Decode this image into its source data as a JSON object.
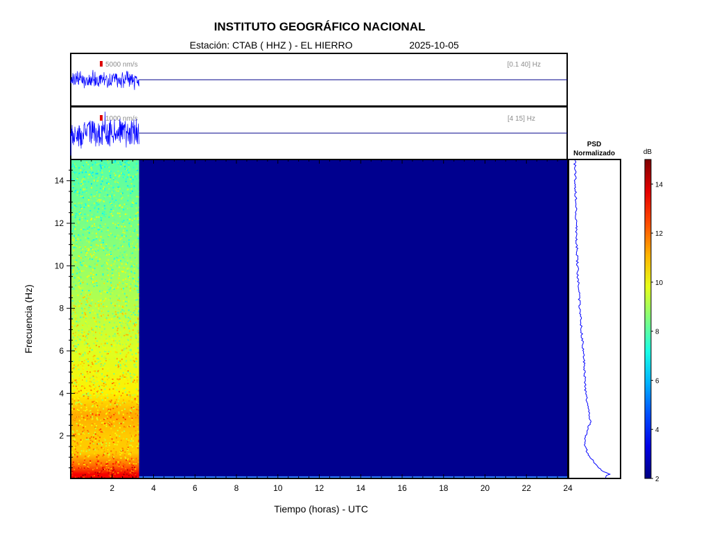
{
  "header": {
    "title": "INSTITUTO GEOGRÁFICO NACIONAL",
    "station": "Estación:  CTAB ( HHZ ) - EL HIERRO",
    "date": "2025-10-05"
  },
  "colors": {
    "trace": "#0000ff",
    "baseline": "#00008b",
    "scale_bar": "#dd0000",
    "empty_spectrogram": "#00008f"
  },
  "chart_data": [
    {
      "type": "line",
      "name": "waveform-broadband",
      "scale_label": "5000 nm/s",
      "band_label": "[0.1 40] Hz",
      "x_range": [
        0,
        24
      ],
      "data_end_hour": 3.3,
      "amplitude_rel": 0.35
    },
    {
      "type": "line",
      "name": "waveform-highpass",
      "scale_label": "1000 nm/s",
      "band_label": "[4 15] Hz",
      "x_range": [
        0,
        24
      ],
      "data_end_hour": 3.3,
      "amplitude_rel": 0.6
    },
    {
      "type": "heatmap",
      "name": "spectrogram",
      "xlabel": "Tiempo (horas) - UTC",
      "ylabel": "Frecuencia  (Hz)",
      "xlim": [
        0,
        24
      ],
      "ylim": [
        0,
        15
      ],
      "x_ticks": [
        2,
        4,
        6,
        8,
        10,
        12,
        14,
        16,
        18,
        20,
        22,
        24
      ],
      "y_ticks": [
        2,
        4,
        6,
        8,
        10,
        12,
        14
      ],
      "data_end_hour": 3.3,
      "colorscale": "jet",
      "power_profile_db": [
        {
          "hz": 0.2,
          "db": 13.5
        },
        {
          "hz": 0.6,
          "db": 12.0
        },
        {
          "hz": 1.2,
          "db": 10.8
        },
        {
          "hz": 2.0,
          "db": 10.8
        },
        {
          "hz": 3.0,
          "db": 11.2
        },
        {
          "hz": 4.0,
          "db": 10.3
        },
        {
          "hz": 6.0,
          "db": 9.7
        },
        {
          "hz": 8.0,
          "db": 9.2
        },
        {
          "hz": 10.0,
          "db": 8.8
        },
        {
          "hz": 12.0,
          "db": 8.4
        },
        {
          "hz": 15.0,
          "db": 8.0
        }
      ]
    },
    {
      "type": "line",
      "name": "psd",
      "title_line1": "PSD",
      "title_line2": "Normalizado",
      "ylim": [
        0,
        15
      ],
      "points": [
        {
          "hz": 0.05,
          "level": 0.7
        },
        {
          "hz": 0.2,
          "level": 0.78
        },
        {
          "hz": 0.4,
          "level": 0.62
        },
        {
          "hz": 0.7,
          "level": 0.52
        },
        {
          "hz": 1.0,
          "level": 0.4
        },
        {
          "hz": 1.5,
          "level": 0.32
        },
        {
          "hz": 2.0,
          "level": 0.33
        },
        {
          "hz": 2.7,
          "level": 0.42
        },
        {
          "hz": 3.2,
          "level": 0.38
        },
        {
          "hz": 4.0,
          "level": 0.33
        },
        {
          "hz": 5.0,
          "level": 0.31
        },
        {
          "hz": 6.0,
          "level": 0.28
        },
        {
          "hz": 8.0,
          "level": 0.22
        },
        {
          "hz": 10.0,
          "level": 0.17
        },
        {
          "hz": 12.0,
          "level": 0.15
        },
        {
          "hz": 14.0,
          "level": 0.13
        },
        {
          "hz": 15.0,
          "level": 0.12
        }
      ]
    },
    {
      "type": "heatmap",
      "name": "colorbar",
      "label": "dB",
      "range": [
        2,
        15
      ],
      "ticks": [
        2,
        4,
        6,
        8,
        10,
        12,
        14
      ]
    }
  ]
}
